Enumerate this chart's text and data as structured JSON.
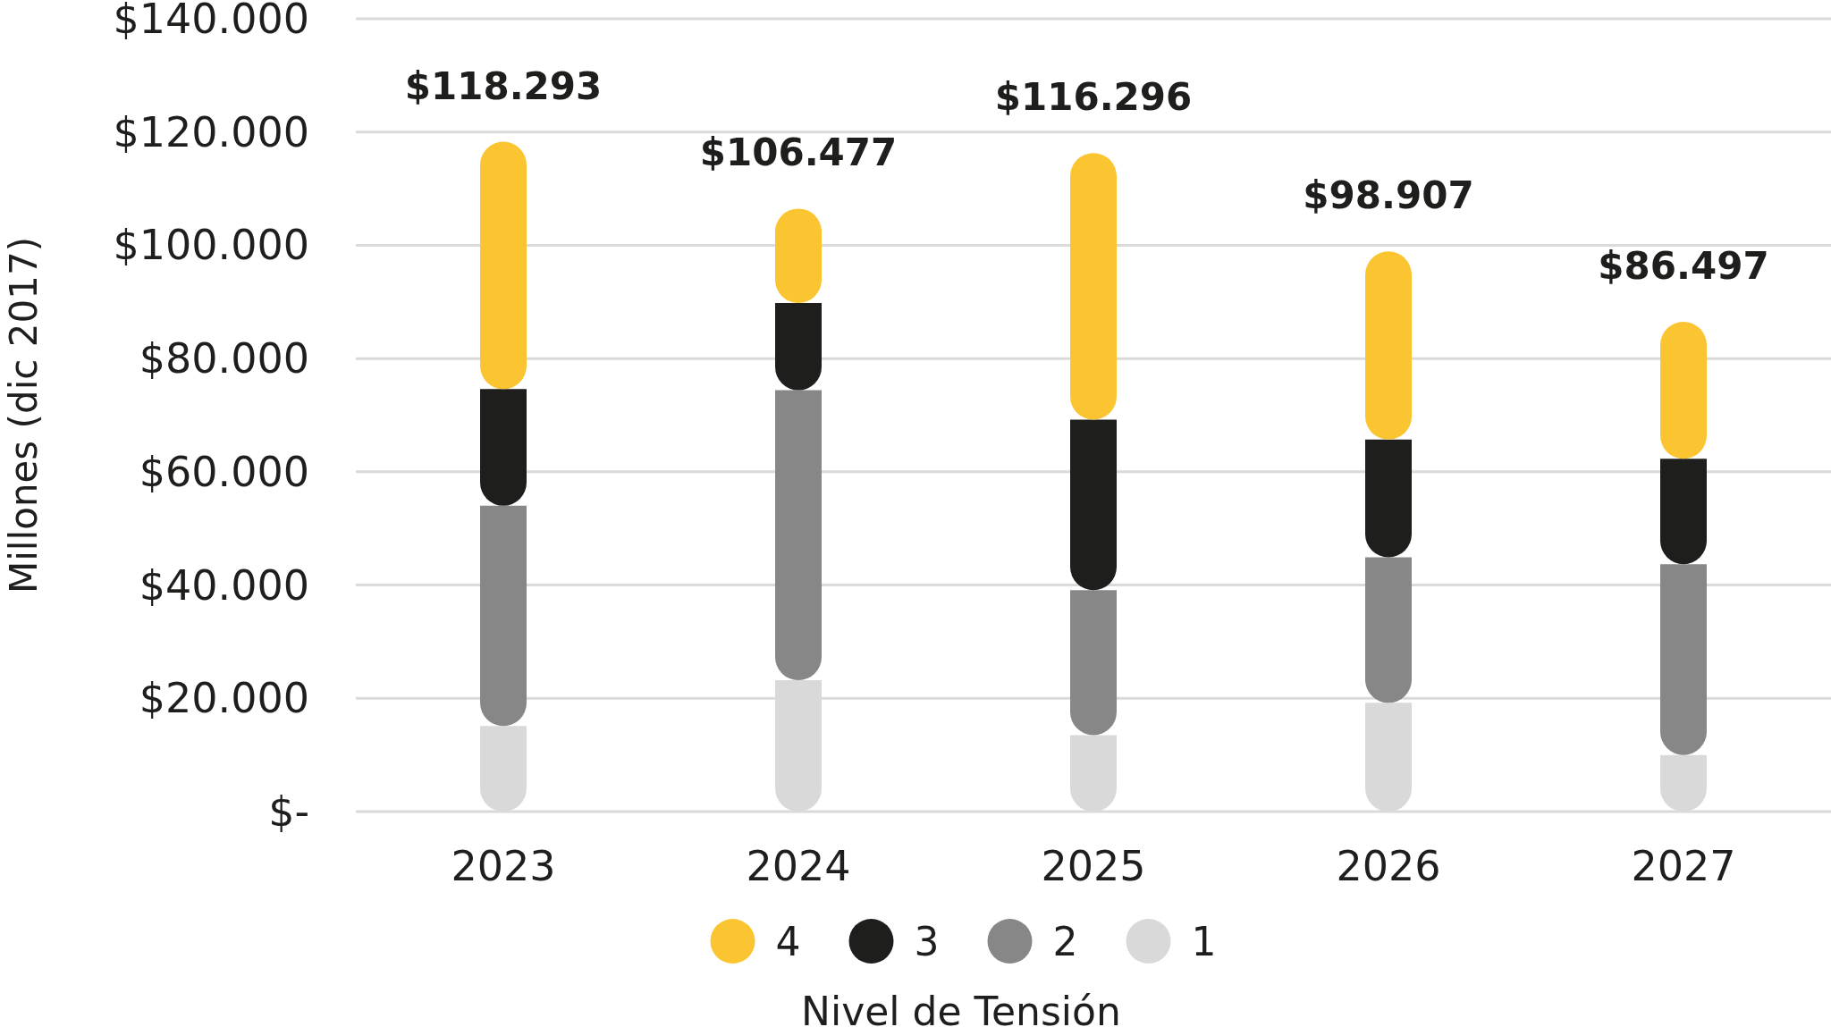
{
  "chart_data": {
    "type": "bar",
    "stacked": true,
    "categories": [
      "2023",
      "2024",
      "2025",
      "2026",
      "2027"
    ],
    "series": [
      {
        "name": "1",
        "color": "#d9d9d9",
        "values": [
          15100,
          23200,
          13500,
          19200,
          10000
        ]
      },
      {
        "name": "2",
        "color": "#878787",
        "values": [
          38900,
          51200,
          25600,
          25700,
          33700
        ]
      },
      {
        "name": "3",
        "color": "#1e1e1c",
        "values": [
          20600,
          15400,
          30100,
          20800,
          18600
        ]
      },
      {
        "name": "4",
        "color": "#fbc531",
        "values": [
          43693,
          16677,
          47096,
          33207,
          24197
        ]
      }
    ],
    "totals": [
      "$118.293",
      "$106.477",
      "$116.296",
      "$98.907",
      "$86.497"
    ],
    "ylabel": "Millones (dic 2017)",
    "legend_title": "Nivel de Tensión",
    "ylim": [
      0,
      140000
    ],
    "yticks": [
      {
        "value": 0,
        "label": "$-"
      },
      {
        "value": 20000,
        "label": "$20.000"
      },
      {
        "value": 40000,
        "label": "$40.000"
      },
      {
        "value": 60000,
        "label": "$60.000"
      },
      {
        "value": 80000,
        "label": "$80.000"
      },
      {
        "value": 100000,
        "label": "$100.000"
      },
      {
        "value": 120000,
        "label": "$120.000"
      },
      {
        "value": 140000,
        "label": "$140.000"
      }
    ],
    "grid": "y",
    "legend": "bottom"
  }
}
